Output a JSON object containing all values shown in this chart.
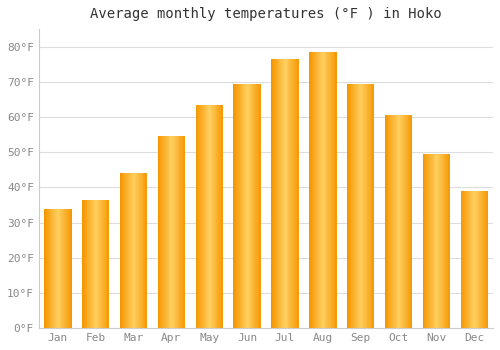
{
  "title": "Average monthly temperatures (°F ) in Hoko",
  "months": [
    "Jan",
    "Feb",
    "Mar",
    "Apr",
    "May",
    "Jun",
    "Jul",
    "Aug",
    "Sep",
    "Oct",
    "Nov",
    "Dec"
  ],
  "temperatures": [
    34,
    36.5,
    44,
    54.5,
    63.5,
    69.5,
    76.5,
    78.5,
    69.5,
    60.5,
    49.5,
    39
  ],
  "bar_color_center": "#FFB733",
  "bar_color_edge": "#F59500",
  "background_color": "#ffffff",
  "plot_bg_color": "#ffffff",
  "grid_color": "#dddddd",
  "ylim": [
    0,
    85
  ],
  "yticks": [
    0,
    10,
    20,
    30,
    40,
    50,
    60,
    70,
    80
  ],
  "ytick_labels": [
    "0°F",
    "10°F",
    "20°F",
    "30°F",
    "40°F",
    "50°F",
    "60°F",
    "70°F",
    "80°F"
  ],
  "title_fontsize": 10,
  "tick_fontsize": 8,
  "title_color": "#333333",
  "tick_color": "#888888",
  "font_family": "monospace"
}
